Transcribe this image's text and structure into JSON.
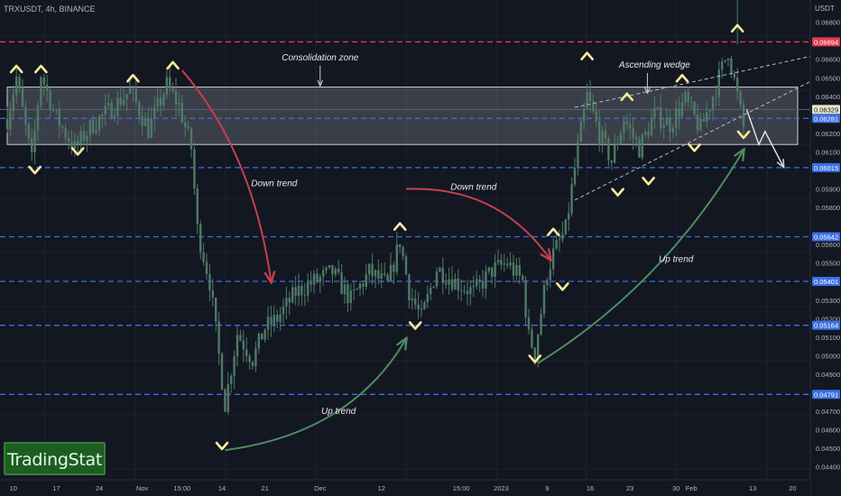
{
  "header": {
    "symbol": "TRXUSDT, 4h, BINANCE"
  },
  "brand": {
    "name": "TradingStat"
  },
  "colors": {
    "background": "#131722",
    "candle": "#4f7a66",
    "resistance_line": "#e03a4e",
    "support_line": "#3d6fe0",
    "zone_fill": "rgba(200,205,215,0.22)",
    "zone_border": "#c8ccd4",
    "marker": "#ffeb9a",
    "down_arrow": "#c8404f",
    "up_arrow": "#4e8e60",
    "wedge": "#b9bcc4",
    "projection": "#ffeb9a"
  },
  "chart_data": {
    "type": "candlestick",
    "y_unit": "USDT",
    "ylim": [
      0.0433,
      0.0692
    ],
    "y_ticks": [
      "0.06800",
      "0.06600",
      "0.06500",
      "0.06400",
      "0.06200",
      "0.06100",
      "0.05900",
      "0.05800",
      "0.05600",
      "0.05500",
      "0.05300",
      "0.05200",
      "0.05100",
      "0.05000",
      "0.04900",
      "0.04800",
      "0.04700",
      "0.04600",
      "0.04500",
      "0.04400"
    ],
    "x_ticks": [
      {
        "label": "10",
        "i": 2
      },
      {
        "label": "17",
        "i": 16
      },
      {
        "label": "24",
        "i": 30
      },
      {
        "label": "Nov",
        "i": 44
      },
      {
        "label": "15:00",
        "i": 57
      },
      {
        "label": "14",
        "i": 70
      },
      {
        "label": "21",
        "i": 84
      },
      {
        "label": "Dec",
        "i": 102
      },
      {
        "label": "12",
        "i": 122
      },
      {
        "label": "15:00",
        "i": 148
      },
      {
        "label": "2023",
        "i": 161
      },
      {
        "label": "9",
        "i": 176
      },
      {
        "label": "16",
        "i": 190
      },
      {
        "label": "23",
        "i": 203
      },
      {
        "label": "30",
        "i": 218
      },
      {
        "label": "Feb",
        "i": 223
      },
      {
        "label": "13",
        "i": 243
      },
      {
        "label": "20",
        "i": 256
      }
    ],
    "last_index": 260,
    "price_levels": [
      {
        "value": 0.06694,
        "label": "0.06694",
        "kind": "resistance"
      },
      {
        "value": 0.06329,
        "label": "0.06329",
        "kind": "current"
      },
      {
        "value": 0.06281,
        "label": "0.06281",
        "kind": "support"
      },
      {
        "value": 0.06015,
        "label": "0.06015",
        "kind": "support"
      },
      {
        "value": 0.05642,
        "label": "0.05642",
        "kind": "support"
      },
      {
        "value": 0.05401,
        "label": "0.05401",
        "kind": "support"
      },
      {
        "value": 0.05164,
        "label": "0.05164",
        "kind": "support"
      },
      {
        "value": 0.04791,
        "label": "0.04791",
        "kind": "support"
      }
    ],
    "zone": {
      "label": "Consolidation zone",
      "top": 0.0645,
      "bottom": 0.0614,
      "start": 0,
      "end": 260
    },
    "price_path": [
      [
        0,
        0.0628
      ],
      [
        3,
        0.065
      ],
      [
        8,
        0.0605
      ],
      [
        11,
        0.0652
      ],
      [
        16,
        0.0628
      ],
      [
        22,
        0.0612
      ],
      [
        28,
        0.0625
      ],
      [
        33,
        0.0632
      ],
      [
        40,
        0.0643
      ],
      [
        46,
        0.0622
      ],
      [
        52,
        0.0646
      ],
      [
        56,
        0.0635
      ],
      [
        60,
        0.0612
      ],
      [
        62,
        0.0568
      ],
      [
        66,
        0.054
      ],
      [
        69,
        0.05
      ],
      [
        71,
        0.0474
      ],
      [
        75,
        0.0512
      ],
      [
        80,
        0.0498
      ],
      [
        84,
        0.0515
      ],
      [
        88,
        0.052
      ],
      [
        94,
        0.0534
      ],
      [
        100,
        0.054
      ],
      [
        106,
        0.0545
      ],
      [
        112,
        0.053
      ],
      [
        118,
        0.0545
      ],
      [
        124,
        0.0538
      ],
      [
        128,
        0.0562
      ],
      [
        131,
        0.0535
      ],
      [
        135,
        0.052
      ],
      [
        140,
        0.0547
      ],
      [
        146,
        0.054
      ],
      [
        152,
        0.0534
      ],
      [
        158,
        0.0546
      ],
      [
        163,
        0.055
      ],
      [
        168,
        0.054
      ],
      [
        170,
        0.051
      ],
      [
        172,
        0.0502
      ],
      [
        176,
        0.0545
      ],
      [
        178,
        0.0555
      ],
      [
        182,
        0.0568
      ],
      [
        186,
        0.0612
      ],
      [
        189,
        0.064
      ],
      [
        193,
        0.062
      ],
      [
        197,
        0.0605
      ],
      [
        201,
        0.0628
      ],
      [
        206,
        0.0612
      ],
      [
        211,
        0.063
      ],
      [
        216,
        0.0625
      ],
      [
        221,
        0.0638
      ],
      [
        226,
        0.0622
      ],
      [
        231,
        0.0645
      ],
      [
        235,
        0.0665
      ],
      [
        238,
        0.064
      ],
      [
        240,
        0.0623
      ]
    ],
    "swing_marks": [
      {
        "i": 3,
        "p": 0.0655,
        "dir": "up"
      },
      {
        "i": 9,
        "p": 0.06,
        "dir": "down"
      },
      {
        "i": 11,
        "p": 0.0655,
        "dir": "up"
      },
      {
        "i": 23,
        "p": 0.061,
        "dir": "down"
      },
      {
        "i": 41,
        "p": 0.065,
        "dir": "up"
      },
      {
        "i": 54,
        "p": 0.0657,
        "dir": "up"
      },
      {
        "i": 70,
        "p": 0.0451,
        "dir": "down"
      },
      {
        "i": 128,
        "p": 0.057,
        "dir": "up"
      },
      {
        "i": 133,
        "p": 0.0516,
        "dir": "down"
      },
      {
        "i": 172,
        "p": 0.0498,
        "dir": "down"
      },
      {
        "i": 178,
        "p": 0.0567,
        "dir": "up"
      },
      {
        "i": 181,
        "p": 0.0537,
        "dir": "down"
      },
      {
        "i": 189,
        "p": 0.0662,
        "dir": "up"
      },
      {
        "i": 199,
        "p": 0.0588,
        "dir": "down"
      },
      {
        "i": 202,
        "p": 0.064,
        "dir": "up"
      },
      {
        "i": 209,
        "p": 0.0594,
        "dir": "down"
      },
      {
        "i": 220,
        "p": 0.065,
        "dir": "up"
      },
      {
        "i": 224,
        "p": 0.0612,
        "dir": "down"
      },
      {
        "i": 238,
        "p": 0.0677,
        "dir": "up"
      },
      {
        "i": 240,
        "p": 0.0619,
        "dir": "down"
      }
    ],
    "annotations": [
      {
        "kind": "text",
        "text": "Consolidation zone",
        "i": 102,
        "p": 0.06595
      },
      {
        "kind": "text",
        "text": "Ascending wedge",
        "i": 211,
        "p": 0.06555
      },
      {
        "kind": "text",
        "text": "Down trend",
        "i": 87,
        "p": 0.05915
      },
      {
        "kind": "text",
        "text": "Down trend",
        "i": 152,
        "p": 0.05895
      },
      {
        "kind": "text",
        "text": "Up trend",
        "i": 218,
        "p": 0.05505
      },
      {
        "kind": "text",
        "text": "Up trend",
        "i": 108,
        "p": 0.04685
      }
    ],
    "trend_arrows": [
      {
        "kind": "down",
        "from": {
          "i": 57,
          "p": 0.0654
        },
        "to": {
          "i": 86,
          "p": 0.054
        },
        "ctrl": {
          "i": 80,
          "p": 0.061
        }
      },
      {
        "kind": "down",
        "from": {
          "i": 130,
          "p": 0.059
        },
        "to": {
          "i": 177,
          "p": 0.0552
        },
        "ctrl": {
          "i": 160,
          "p": 0.0592
        }
      },
      {
        "kind": "up",
        "from": {
          "i": 71,
          "p": 0.0449
        },
        "to": {
          "i": 130,
          "p": 0.0509
        },
        "ctrl": {
          "i": 112,
          "p": 0.0458
        }
      },
      {
        "kind": "up",
        "from": {
          "i": 173,
          "p": 0.0496
        },
        "to": {
          "i": 240,
          "p": 0.0611
        },
        "ctrl": {
          "i": 214,
          "p": 0.0538
        }
      }
    ],
    "wedge_lines": [
      {
        "from": {
          "i": 185,
          "p": 0.0634
        },
        "to": {
          "i": 263,
          "p": 0.0662
        }
      },
      {
        "from": {
          "i": 185,
          "p": 0.0584
        },
        "to": {
          "i": 263,
          "p": 0.0649
        }
      }
    ],
    "projection": [
      {
        "i": 241,
        "p": 0.0633
      },
      {
        "i": 245,
        "p": 0.0614
      },
      {
        "i": 247,
        "p": 0.0621
      },
      {
        "i": 253,
        "p": 0.0602
      }
    ]
  }
}
